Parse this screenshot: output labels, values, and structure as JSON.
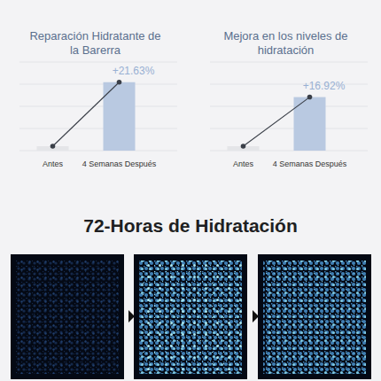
{
  "chart_data": [
    {
      "type": "bar",
      "title": "Reparación Hidratante de la Barerra",
      "categories": [
        "Antes",
        "4 Semanas Después"
      ],
      "values": [
        1.4,
        21.63
      ],
      "colors": [
        "#e4e5e8",
        "#b9c9e1"
      ],
      "annotation": "+21.63%",
      "ylim": [
        0,
        28
      ],
      "yticks": [
        0,
        7,
        14,
        21,
        28
      ],
      "grid": true,
      "tick_labels": false,
      "marker": "circle",
      "line_style": "solid"
    },
    {
      "type": "bar",
      "title": "Mejora en los niveles de hidratación",
      "categories": [
        "Antes",
        "4 Semanas Después"
      ],
      "values": [
        1.4,
        16.92
      ],
      "colors": [
        "#e4e5e8",
        "#b9c9e1"
      ],
      "annotation": "+16.92%",
      "ylim": [
        0,
        28
      ],
      "yticks": [
        0,
        7,
        14,
        21,
        28
      ],
      "grid": true,
      "tick_labels": false,
      "marker": "circle",
      "line_style": "solid"
    }
  ],
  "heading": "72-Horas de Hidratación"
}
